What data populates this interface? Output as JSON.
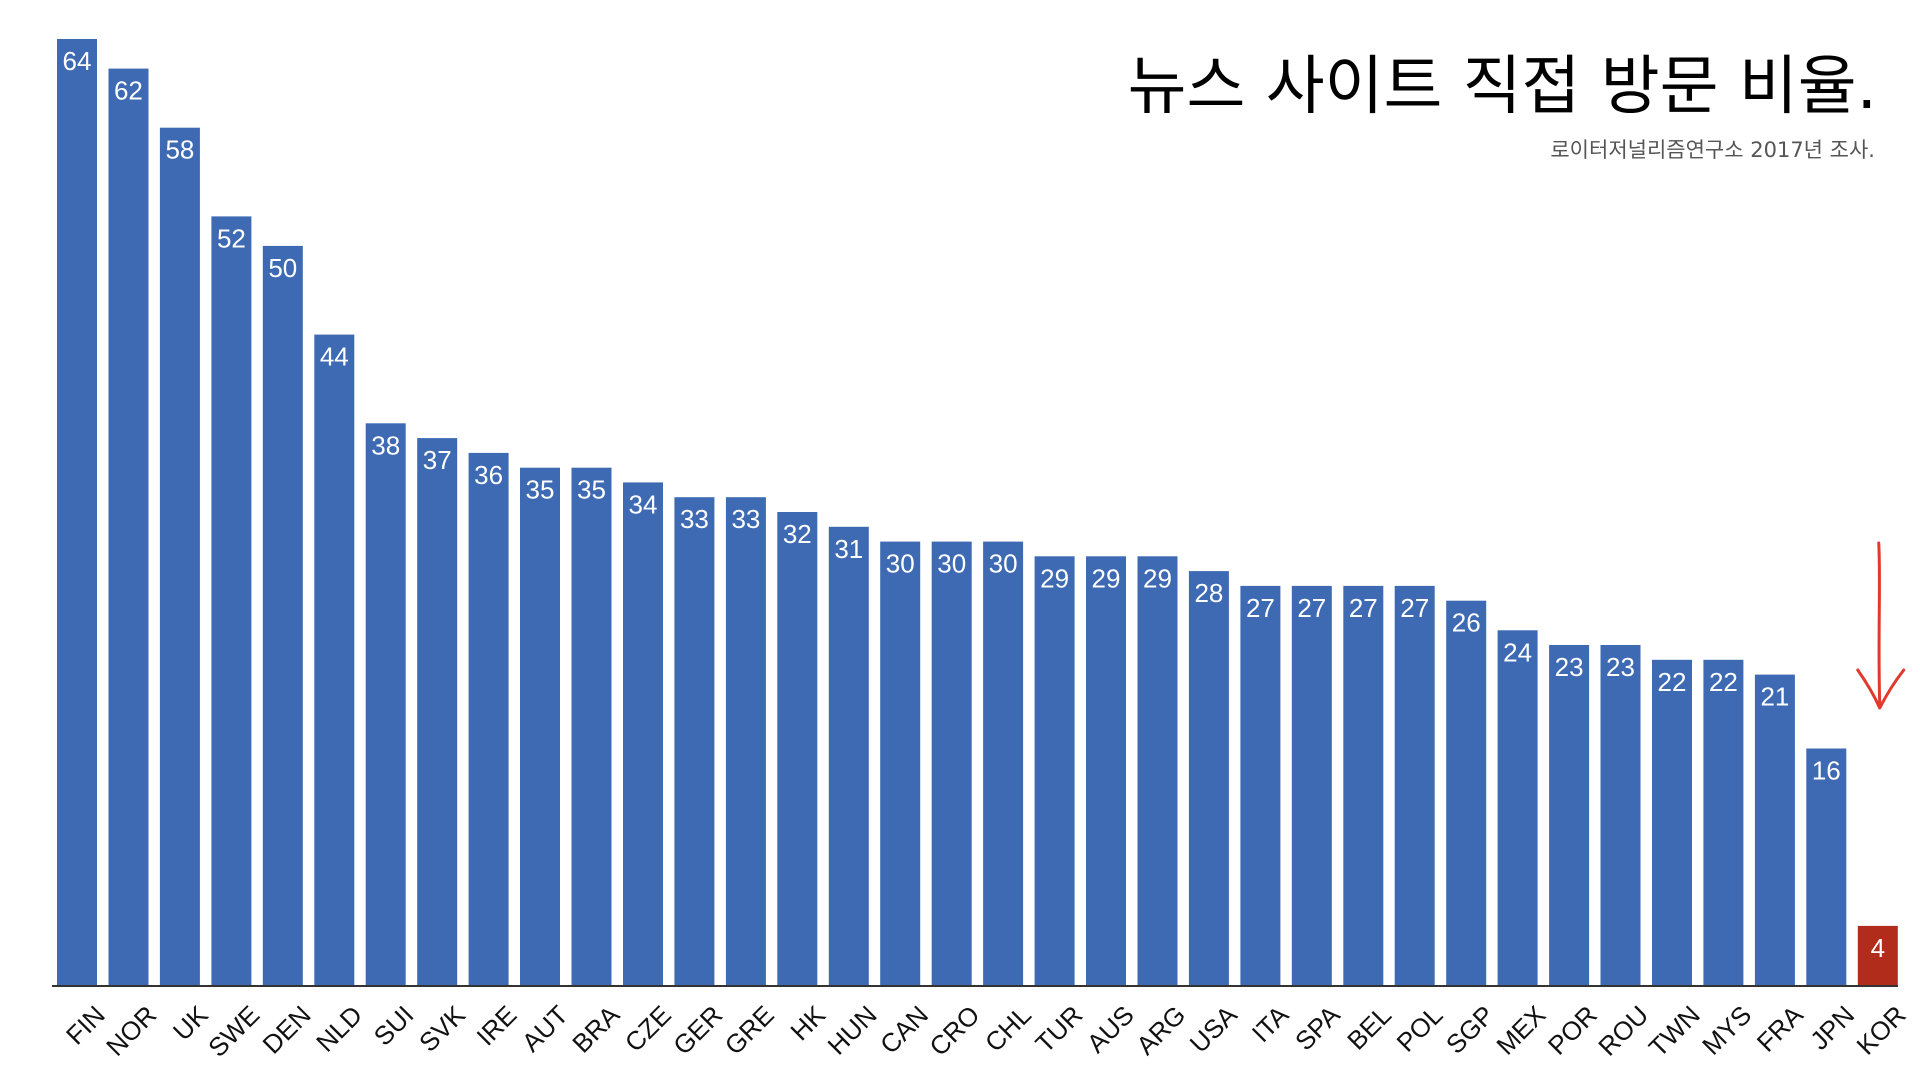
{
  "chart_data": {
    "type": "bar",
    "title": "뉴스 사이트 직접 방문 비율.",
    "subtitle": "로이터저널리즘연구소 2017년 조사.",
    "categories": [
      "FIN",
      "NOR",
      "UK",
      "SWE",
      "DEN",
      "NLD",
      "SUI",
      "SVK",
      "IRE",
      "AUT",
      "BRA",
      "CZE",
      "GER",
      "GRE",
      "HK",
      "HUN",
      "CAN",
      "CRO",
      "CHL",
      "TUR",
      "AUS",
      "ARG",
      "USA",
      "ITA",
      "SPA",
      "BEL",
      "POL",
      "SGP",
      "MEX",
      "POR",
      "ROU",
      "TWN",
      "MYS",
      "FRA",
      "JPN",
      "KOR"
    ],
    "values": [
      64,
      62,
      58,
      52,
      50,
      44,
      38,
      37,
      36,
      35,
      35,
      34,
      33,
      33,
      32,
      31,
      30,
      30,
      30,
      29,
      29,
      29,
      28,
      27,
      27,
      27,
      27,
      26,
      24,
      23,
      23,
      22,
      22,
      21,
      16,
      4
    ],
    "highlight": "KOR",
    "ylim": [
      0,
      66
    ],
    "grid": false,
    "colors": {
      "bar": "#3d6ab2",
      "highlight": "#b22c1c",
      "arrow": "#e03a2e",
      "label": "#ffffff"
    },
    "annotation": {
      "type": "arrow-down",
      "target": "KOR"
    }
  }
}
